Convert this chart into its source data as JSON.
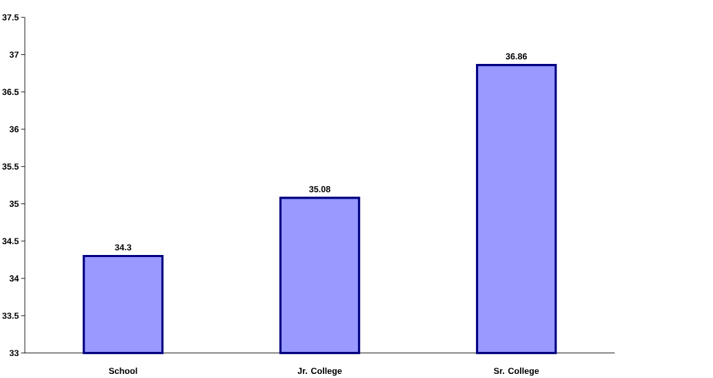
{
  "chart_data": {
    "type": "bar",
    "categories": [
      "School",
      "Jr. College",
      "Sr. College"
    ],
    "values": [
      34.3,
      35.08,
      36.86
    ],
    "color": "#9999ff",
    "ylim": [
      33,
      37.5
    ],
    "yticks": [
      33,
      33.5,
      34,
      34.5,
      35,
      35.5,
      36,
      36.5,
      37,
      37.5
    ],
    "data_labels": true
  }
}
